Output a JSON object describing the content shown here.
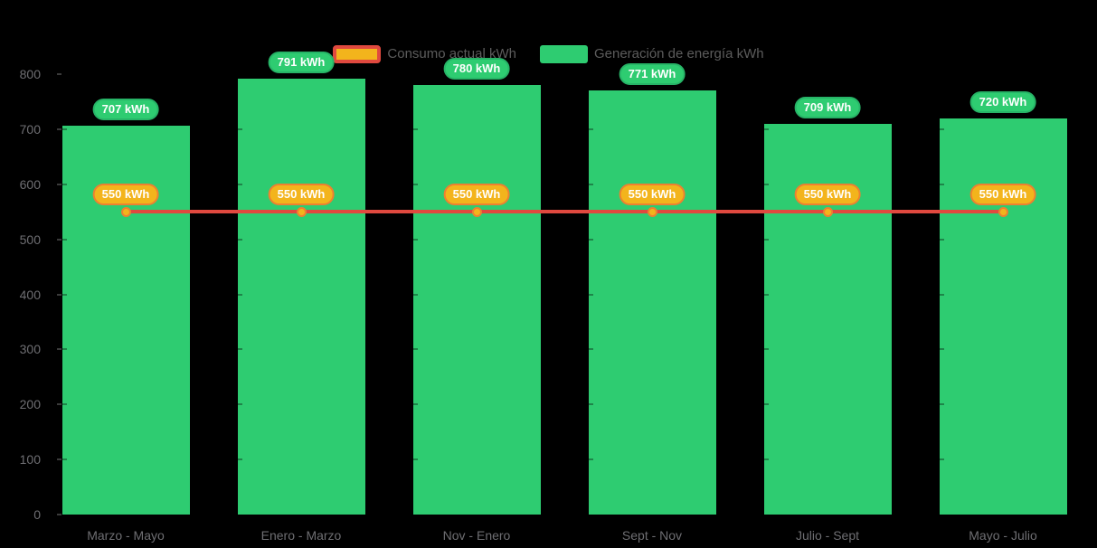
{
  "chart_data": {
    "type": "bar",
    "combo": "bar+line",
    "title": "",
    "xlabel": "",
    "ylabel": "",
    "ylim": [
      0,
      800
    ],
    "y_ticks": [
      "0",
      "100",
      "200",
      "300",
      "400",
      "500",
      "600",
      "700",
      "800"
    ],
    "grid": false,
    "legend_position": "top",
    "categories": [
      "Marzo - Mayo",
      "Enero - Marzo",
      "Nov - Enero",
      "Sept - Nov",
      "Julio - Sept",
      "Mayo - Julio"
    ],
    "series": [
      {
        "name": "Generación de energía kWh",
        "type": "bar",
        "color": "#2ecc71",
        "values": [
          707,
          791,
          780,
          771,
          709,
          720
        ],
        "point_labels": [
          "707 kWh",
          "791 kWh",
          "780 kWh",
          "771 kWh",
          "709 kWh",
          "720 kWh"
        ],
        "label_fill": "#2ecc71",
        "label_border": "#27b467",
        "label_text_color": "#ffffff"
      },
      {
        "name": "Consumo actual kWh",
        "type": "line",
        "color": "#e0493f",
        "values": [
          550,
          550,
          550,
          550,
          550,
          550
        ],
        "point_labels": [
          "550 kWh",
          "550 kWh",
          "550 kWh",
          "550 kWh",
          "550 kWh",
          "550 kWh"
        ],
        "label_fill": "#f3b41c",
        "label_border": "#ee8030",
        "label_text_color": "#ffffff",
        "marker_fill": "#f3b41c",
        "marker_border": "#ee8030"
      }
    ]
  },
  "legend": {
    "items": [
      {
        "key": "consumo",
        "label": "Consumo actual kWh",
        "swatch_fill": "#f3b41c",
        "swatch_border": "#e0493f"
      },
      {
        "key": "generacion",
        "label": "Generación de energía kWh",
        "swatch_fill": "#2ecc71",
        "swatch_border": ""
      }
    ]
  },
  "colors": {
    "background": "#000000",
    "axis_label": "#6e6e72",
    "legend_text": "#5c5c5c",
    "tick": "#3a3a3a"
  }
}
